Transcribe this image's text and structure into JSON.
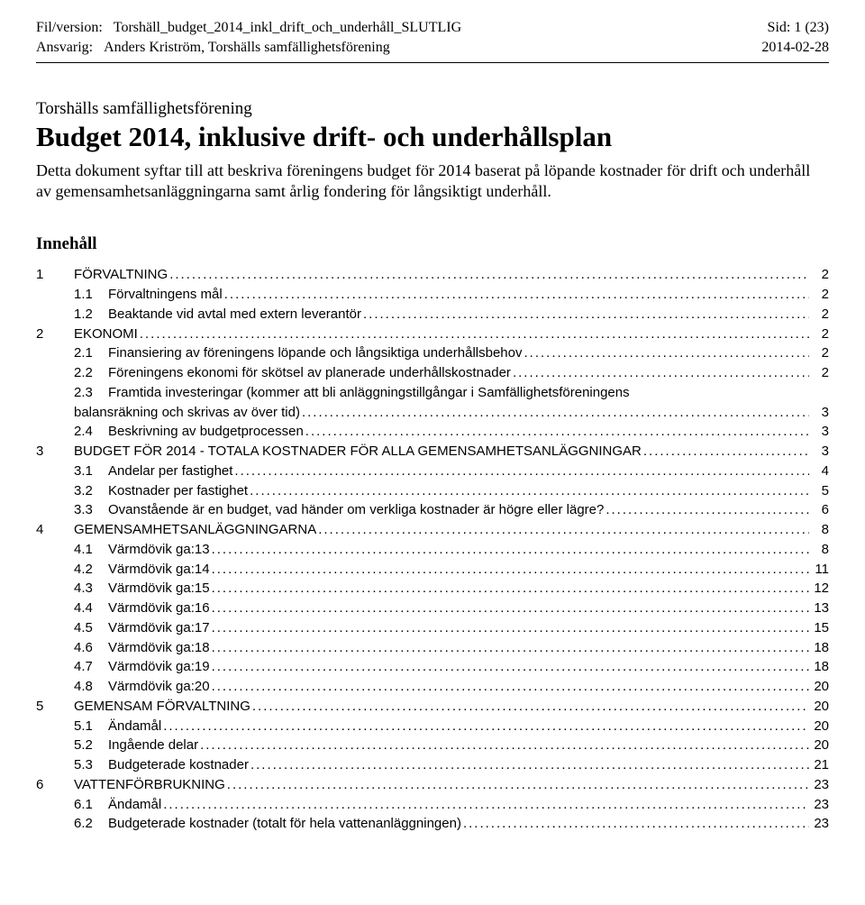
{
  "header": {
    "fil_label": "Fil/version:",
    "fil_value": "Torshäll_budget_2014_inkl_drift_och_underhåll_SLUTLIG",
    "ansvarig_label": "Ansvarig:",
    "ansvarig_value": "Anders Kriström, Torshälls samfällighetsförening",
    "sid_label": "Sid:",
    "sid_value": "1 (23)",
    "date": "2014-02-28"
  },
  "title": {
    "org": "Torshälls samfällighetsförening",
    "main": "Budget 2014, inklusive drift- och underhållsplan"
  },
  "intro": "Detta dokument syftar till att beskriva föreningens budget för 2014 baserat på löpande kostnader för drift och underhåll av gemensamhetsanläggningarna samt årlig fondering för långsiktigt underhåll.",
  "toc_heading": "Innehåll",
  "toc": [
    {
      "lvl": 1,
      "num": "1",
      "text": "FÖRVALTNING",
      "page": "2"
    },
    {
      "lvl": 2,
      "num": "1.1",
      "text": "Förvaltningens mål",
      "page": "2"
    },
    {
      "lvl": 2,
      "num": "1.2",
      "text": "Beaktande vid avtal med extern leverantör",
      "page": "2"
    },
    {
      "lvl": 1,
      "num": "2",
      "text": "EKONOMI",
      "page": "2"
    },
    {
      "lvl": 2,
      "num": "2.1",
      "text": "Finansiering av föreningens löpande och långsiktiga underhållsbehov",
      "page": "2"
    },
    {
      "lvl": 2,
      "num": "2.2",
      "text": "Föreningens ekonomi för skötsel av planerade underhållskostnader",
      "page": "2"
    },
    {
      "lvl": 2,
      "num": "2.3",
      "text": "Framtida investeringar (kommer att bli anläggningstillgångar i Samfällighetsföreningens",
      "cont": "balansräkning och skrivas av över tid)",
      "page": "3"
    },
    {
      "lvl": 2,
      "num": "2.4",
      "text": "Beskrivning av budgetprocessen",
      "page": "3"
    },
    {
      "lvl": 1,
      "num": "3",
      "text": "BUDGET FÖR 2014 - TOTALA KOSTNADER FÖR ALLA GEMENSAMHETSANLÄGGNINGAR",
      "page": "3"
    },
    {
      "lvl": 2,
      "num": "3.1",
      "text": "Andelar per fastighet",
      "page": "4"
    },
    {
      "lvl": 2,
      "num": "3.2",
      "text": "Kostnader per fastighet",
      "page": "5"
    },
    {
      "lvl": 2,
      "num": "3.3",
      "text": "Ovanstående är en budget, vad händer om verkliga kostnader är högre eller lägre?",
      "page": "6"
    },
    {
      "lvl": 1,
      "num": "4",
      "text": "GEMENSAMHETSANLÄGGNINGARNA",
      "page": "8"
    },
    {
      "lvl": 2,
      "num": "4.1",
      "text": "Värmdövik ga:13",
      "page": "8"
    },
    {
      "lvl": 2,
      "num": "4.2",
      "text": "Värmdövik ga:14",
      "page": "11"
    },
    {
      "lvl": 2,
      "num": "4.3",
      "text": "Värmdövik ga:15",
      "page": "12"
    },
    {
      "lvl": 2,
      "num": "4.4",
      "text": "Värmdövik ga:16",
      "page": "13"
    },
    {
      "lvl": 2,
      "num": "4.5",
      "text": "Värmdövik ga:17",
      "page": "15"
    },
    {
      "lvl": 2,
      "num": "4.6",
      "text": "Värmdövik ga:18",
      "page": "18"
    },
    {
      "lvl": 2,
      "num": "4.7",
      "text": "Värmdövik ga:19",
      "page": "18"
    },
    {
      "lvl": 2,
      "num": "4.8",
      "text": "Värmdövik ga:20",
      "page": "20"
    },
    {
      "lvl": 1,
      "num": "5",
      "text": "GEMENSAM FÖRVALTNING",
      "page": "20"
    },
    {
      "lvl": 2,
      "num": "5.1",
      "text": "Ändamål",
      "page": "20"
    },
    {
      "lvl": 2,
      "num": "5.2",
      "text": "Ingående delar",
      "page": "20"
    },
    {
      "lvl": 2,
      "num": "5.3",
      "text": "Budgeterade kostnader",
      "page": "21"
    },
    {
      "lvl": 1,
      "num": "6",
      "text": "VATTENFÖRBRUKNING",
      "page": "23"
    },
    {
      "lvl": 2,
      "num": "6.1",
      "text": "Ändamål",
      "page": "23"
    },
    {
      "lvl": 2,
      "num": "6.2",
      "text": "Budgeterade kostnader (totalt för hela vattenanläggningen)",
      "page": "23"
    }
  ]
}
